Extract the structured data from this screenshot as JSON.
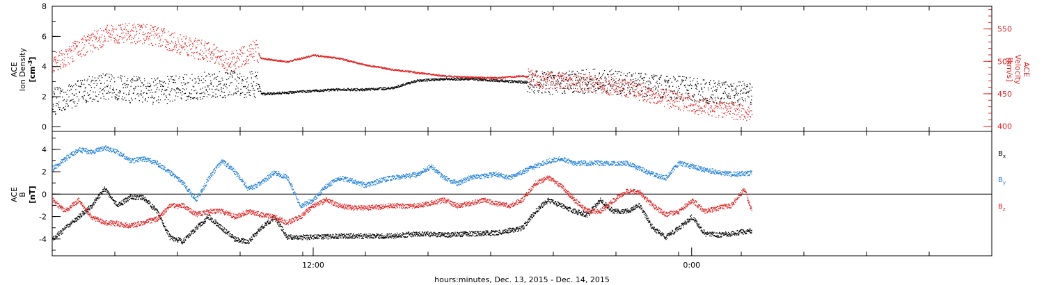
{
  "chart_data": [
    {
      "type": "scatter",
      "panel": "upper",
      "left_axis": {
        "label": [
          "ACE",
          "Ion Density",
          "[cm",
          "-3",
          "]"
        ],
        "ylim": [
          -0.3,
          8.0
        ],
        "ticks": [
          "0",
          "2",
          "4",
          "6",
          "8"
        ],
        "color": "#000000"
      },
      "right_axis": {
        "label": [
          "ACE",
          "Velocity",
          "[km/s]"
        ],
        "ylim": [
          392,
          585
        ],
        "ticks": [
          "400",
          "450",
          "500",
          "550"
        ],
        "color": "#e02020"
      },
      "series": [
        {
          "key": "density",
          "color": "#000000",
          "axis": "left",
          "trend": [
            [
              0.0,
              1.7
            ],
            [
              1.0,
              2.3
            ],
            [
              2.0,
              2.7
            ],
            [
              3.0,
              2.5
            ],
            [
              4.0,
              2.4
            ],
            [
              5.0,
              2.6
            ],
            [
              6.0,
              2.8
            ],
            [
              7.0,
              2.9
            ],
            [
              7.9,
              2.8
            ],
            [
              8.0,
              2.2
            ],
            [
              9.0,
              2.3
            ],
            [
              10.0,
              2.4
            ],
            [
              11.0,
              2.5
            ],
            [
              12.0,
              2.5
            ],
            [
              13.0,
              2.6
            ],
            [
              14.0,
              3.1
            ],
            [
              15.0,
              3.2
            ],
            [
              16.0,
              3.2
            ],
            [
              17.0,
              3.1
            ],
            [
              18.0,
              3.0
            ],
            [
              19.0,
              2.9
            ],
            [
              20.0,
              3.0
            ],
            [
              21.0,
              3.1
            ],
            [
              22.0,
              2.9
            ],
            [
              23.0,
              2.7
            ],
            [
              24.0,
              2.6
            ],
            [
              25.0,
              2.4
            ],
            [
              26.0,
              2.3
            ],
            [
              26.8,
              2.2
            ]
          ],
          "scatter_segments": [
            [
              0.0,
              7.9,
              0.9
            ],
            [
              18.2,
              26.8,
              0.8
            ]
          ]
        },
        {
          "key": "velocity",
          "color": "#e02020",
          "axis": "right",
          "trend": [
            [
              0.0,
              495
            ],
            [
              1.0,
              520
            ],
            [
              2.0,
              540
            ],
            [
              3.0,
              545
            ],
            [
              4.0,
              540
            ],
            [
              5.0,
              525
            ],
            [
              6.0,
              515
            ],
            [
              6.8,
              500
            ],
            [
              7.2,
              505
            ],
            [
              7.8,
              520
            ],
            [
              8.0,
              505
            ],
            [
              9.0,
              500
            ],
            [
              10.0,
              510
            ],
            [
              11.0,
              505
            ],
            [
              12.0,
              495
            ],
            [
              13.0,
              488
            ],
            [
              14.0,
              483
            ],
            [
              15.0,
              478
            ],
            [
              16.0,
              476
            ],
            [
              17.0,
              475
            ],
            [
              18.0,
              478
            ],
            [
              19.0,
              470
            ],
            [
              20.0,
              468
            ],
            [
              21.0,
              465
            ],
            [
              22.0,
              458
            ],
            [
              23.0,
              450
            ],
            [
              24.0,
              438
            ],
            [
              25.0,
              430
            ],
            [
              26.0,
              425
            ],
            [
              26.8,
              422
            ]
          ],
          "scatter_segments": [
            [
              0.0,
              7.9,
              16
            ],
            [
              18.2,
              26.8,
              14
            ]
          ]
        }
      ]
    },
    {
      "type": "scatter",
      "panel": "lower",
      "left_axis": {
        "label": [
          "ACE",
          "B",
          "[nT]"
        ],
        "ylim": [
          -5.5,
          5.6
        ],
        "ticks": [
          "-4",
          "-2",
          "0",
          "2",
          "4"
        ],
        "color": "#000000"
      },
      "zero_line": 0,
      "series": [
        {
          "key": "bx",
          "name": "B",
          "sub": "x",
          "color": "#000000",
          "trend": [
            [
              0.0,
              -4.0
            ],
            [
              0.5,
              -3.0
            ],
            [
              1.0,
              -2.0
            ],
            [
              1.5,
              -1.0
            ],
            [
              2.0,
              0.5
            ],
            [
              2.5,
              -1.0
            ],
            [
              3.0,
              -0.2
            ],
            [
              3.5,
              -0.3
            ],
            [
              4.0,
              -1.5
            ],
            [
              4.5,
              -3.8
            ],
            [
              5.0,
              -4.2
            ],
            [
              5.5,
              -3.0
            ],
            [
              6.0,
              -2.0
            ],
            [
              6.5,
              -3.0
            ],
            [
              7.0,
              -4.0
            ],
            [
              7.5,
              -4.2
            ],
            [
              8.0,
              -3.0
            ],
            [
              8.5,
              -2.0
            ],
            [
              9.0,
              -3.8
            ],
            [
              10.0,
              -3.8
            ],
            [
              11.0,
              -3.7
            ],
            [
              12.0,
              -3.7
            ],
            [
              13.0,
              -3.7
            ],
            [
              14.0,
              -3.5
            ],
            [
              15.0,
              -3.6
            ],
            [
              16.0,
              -3.5
            ],
            [
              17.0,
              -3.4
            ],
            [
              18.0,
              -3.0
            ],
            [
              18.5,
              -1.5
            ],
            [
              19.0,
              -0.5
            ],
            [
              19.5,
              -1.0
            ],
            [
              20.0,
              -1.5
            ],
            [
              20.5,
              -1.8
            ],
            [
              21.0,
              -0.5
            ],
            [
              21.5,
              -1.5
            ],
            [
              22.0,
              -1.5
            ],
            [
              22.5,
              -1.0
            ],
            [
              23.0,
              -3.0
            ],
            [
              23.5,
              -3.8
            ],
            [
              24.0,
              -3.0
            ],
            [
              24.5,
              -2.0
            ],
            [
              25.0,
              -3.5
            ],
            [
              25.5,
              -3.6
            ],
            [
              26.0,
              -3.5
            ],
            [
              26.8,
              -3.2
            ]
          ]
        },
        {
          "key": "by",
          "name": "B",
          "sub": "y",
          "color": "#1f7fd8",
          "trend": [
            [
              0.0,
              2.3
            ],
            [
              0.5,
              3.2
            ],
            [
              1.0,
              4.0
            ],
            [
              1.5,
              3.8
            ],
            [
              2.0,
              4.2
            ],
            [
              2.5,
              3.8
            ],
            [
              3.0,
              3.0
            ],
            [
              3.5,
              3.2
            ],
            [
              4.0,
              2.8
            ],
            [
              4.5,
              2.0
            ],
            [
              5.0,
              1.0
            ],
            [
              5.5,
              -0.5
            ],
            [
              6.0,
              1.5
            ],
            [
              6.5,
              3.0
            ],
            [
              7.0,
              2.0
            ],
            [
              7.5,
              0.5
            ],
            [
              8.0,
              1.0
            ],
            [
              8.5,
              2.0
            ],
            [
              9.0,
              1.5
            ],
            [
              9.5,
              -1.0
            ],
            [
              10.0,
              -0.5
            ],
            [
              10.5,
              0.8
            ],
            [
              11.0,
              1.5
            ],
            [
              11.5,
              1.2
            ],
            [
              12.0,
              0.8
            ],
            [
              12.5,
              1.2
            ],
            [
              13.0,
              1.5
            ],
            [
              14.0,
              1.8
            ],
            [
              14.5,
              2.5
            ],
            [
              15.0,
              1.5
            ],
            [
              15.5,
              1.0
            ],
            [
              16.0,
              1.5
            ],
            [
              17.0,
              1.8
            ],
            [
              17.5,
              1.5
            ],
            [
              18.0,
              2.0
            ],
            [
              18.5,
              2.5
            ],
            [
              19.0,
              3.0
            ],
            [
              19.5,
              3.2
            ],
            [
              20.0,
              2.8
            ],
            [
              21.0,
              2.8
            ],
            [
              22.0,
              2.8
            ],
            [
              23.0,
              1.8
            ],
            [
              23.5,
              1.5
            ],
            [
              24.0,
              2.8
            ],
            [
              25.0,
              2.2
            ],
            [
              26.0,
              1.8
            ],
            [
              26.8,
              1.9
            ]
          ]
        },
        {
          "key": "bz",
          "name": "B",
          "sub": "z",
          "color": "#e02020",
          "trend": [
            [
              0.0,
              -0.5
            ],
            [
              0.5,
              -1.5
            ],
            [
              1.0,
              -0.5
            ],
            [
              1.5,
              -2.0
            ],
            [
              2.0,
              -2.5
            ],
            [
              2.5,
              -2.6
            ],
            [
              3.0,
              -2.8
            ],
            [
              3.5,
              -2.5
            ],
            [
              4.0,
              -2.2
            ],
            [
              4.5,
              -1.0
            ],
            [
              5.0,
              -1.0
            ],
            [
              5.5,
              -1.8
            ],
            [
              6.0,
              -1.5
            ],
            [
              6.5,
              -1.5
            ],
            [
              7.0,
              -2.0
            ],
            [
              7.5,
              -1.5
            ],
            [
              8.0,
              -1.8
            ],
            [
              8.5,
              -2.0
            ],
            [
              9.0,
              -2.5
            ],
            [
              9.5,
              -2.0
            ],
            [
              10.0,
              -1.0
            ],
            [
              10.5,
              -0.5
            ],
            [
              11.0,
              -1.0
            ],
            [
              11.5,
              -1.2
            ],
            [
              12.0,
              -1.2
            ],
            [
              13.0,
              -1.0
            ],
            [
              14.0,
              -1.0
            ],
            [
              15.0,
              -0.5
            ],
            [
              15.5,
              -1.0
            ],
            [
              16.0,
              -0.8
            ],
            [
              16.5,
              -0.5
            ],
            [
              17.0,
              -0.8
            ],
            [
              17.5,
              -1.0
            ],
            [
              18.0,
              -0.5
            ],
            [
              18.5,
              1.0
            ],
            [
              19.0,
              1.5
            ],
            [
              19.5,
              0.8
            ],
            [
              20.0,
              -0.5
            ],
            [
              20.5,
              -1.5
            ],
            [
              21.0,
              -1.5
            ],
            [
              21.5,
              -0.5
            ],
            [
              22.0,
              0.3
            ],
            [
              22.5,
              0.2
            ],
            [
              23.0,
              -1.0
            ],
            [
              23.5,
              -1.8
            ],
            [
              24.0,
              -1.5
            ],
            [
              24.5,
              -0.5
            ],
            [
              25.0,
              -1.5
            ],
            [
              25.5,
              -1.2
            ],
            [
              26.0,
              -1.0
            ],
            [
              26.5,
              0.5
            ],
            [
              26.8,
              -1.5
            ]
          ]
        }
      ]
    }
  ],
  "x_axis": {
    "range_hours": [
      0,
      36
    ],
    "labels": [
      {
        "hour": 10,
        "text": "12:00"
      },
      {
        "hour": 24.5,
        "text": "0:00"
      }
    ],
    "caption": "hours:minutes, Dec. 13, 2015 - Dec. 14, 2015"
  }
}
